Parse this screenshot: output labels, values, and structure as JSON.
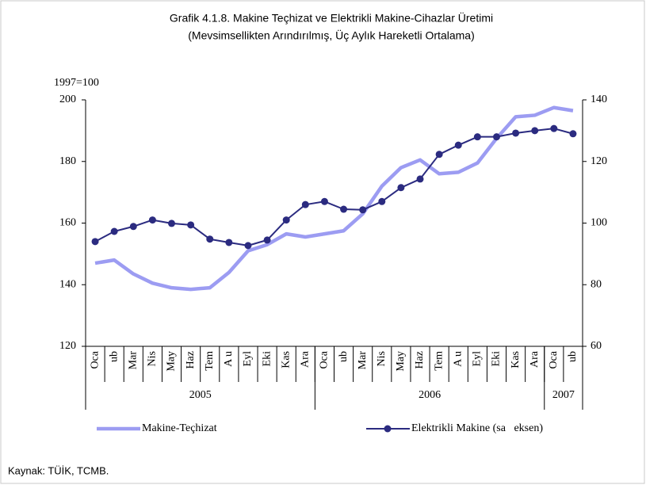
{
  "chart_data": {
    "type": "line",
    "title": "Grafik 4.1.8. Makine Teçhizat ve Elektrikli Makine-Cihazlar Üretimi",
    "subtitle": "(Mevsimsellikten Arındırılmış, Üç Aylık Hareketli Ortalama)",
    "y_label": "1997=100",
    "source": "Kaynak: TÜİK, TCMB.",
    "categories": [
      "Oca",
      "ub",
      "Mar",
      "Nis",
      "May",
      "Haz",
      "Tem",
      "A u",
      "Eyl",
      "Eki",
      "Kas",
      "Ara",
      "Oca",
      "ub",
      "Mar",
      "Nis",
      "May",
      "Haz",
      "Tem",
      "A u",
      "Eyl",
      "Eki",
      "Kas",
      "Ara",
      "Oca",
      "ub"
    ],
    "year_groups": [
      {
        "label": "2005",
        "span": 12
      },
      {
        "label": "2006",
        "span": 12
      },
      {
        "label": "2007",
        "span": 2
      }
    ],
    "ylim": [
      120,
      200
    ],
    "yticks": [
      120,
      140,
      160,
      180,
      200
    ],
    "y2lim": [
      60,
      140
    ],
    "y2ticks": [
      60,
      80,
      100,
      120,
      140
    ],
    "series": [
      {
        "name": "Makine-Teçhizat",
        "color": "#9c9cf2",
        "values": [
          147,
          148,
          143.5,
          140.5,
          139,
          138.5,
          139,
          144,
          151,
          153,
          156.5,
          155.5,
          156.5,
          157.5,
          163,
          172,
          178,
          180.5,
          176,
          176.5,
          179.5,
          187.5,
          194.5,
          195,
          197.5,
          196.5
        ]
      },
      {
        "name": "Elektrikli Makine (sa   eksen)",
        "color": "#2b2b80",
        "axis": "y2",
        "marker": "circle",
        "values": [
          94,
          97.3,
          98.9,
          101,
          99.9,
          99.4,
          94.8,
          93.7,
          92.7,
          94.5,
          101,
          106,
          107,
          104.5,
          104.3,
          107,
          111.5,
          114.3,
          122.3,
          125.3,
          128,
          128,
          129.2,
          130,
          130.7,
          129
        ]
      }
    ]
  }
}
